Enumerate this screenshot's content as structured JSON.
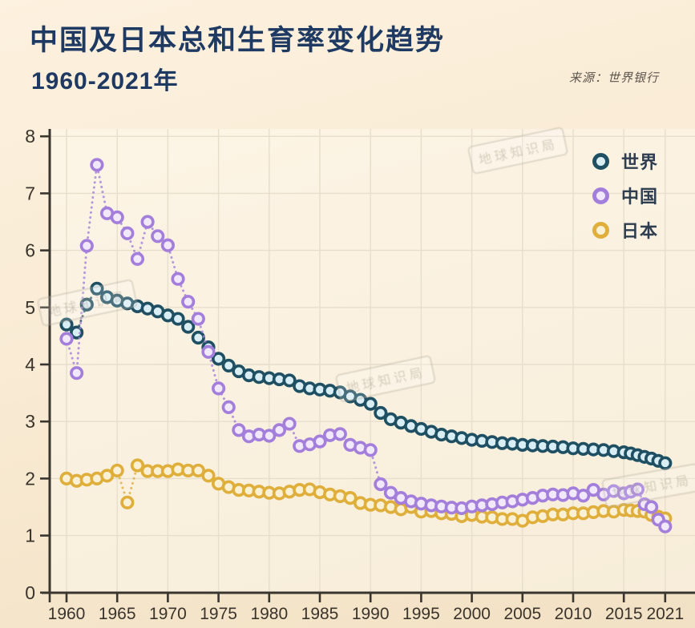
{
  "page": {
    "title": "中国及日本总和生育率变化趋势",
    "subtitle": "1960-2021年",
    "source": "来源：世界银行",
    "watermark": "地球知识局",
    "background": "#f9ebd4"
  },
  "colors": {
    "title_text": "#1e3a63",
    "axis": "#39352f",
    "grid": "#e7decb",
    "plot_background": "#faf2e4",
    "world_ring": "#1e4f62",
    "world_fill": "#d9edf5",
    "china_ring": "#a37edb",
    "china_fill": "#f1e9fb",
    "japan_ring": "#dfae3b",
    "japan_fill": "#faf1d4"
  },
  "chart_data": {
    "type": "scatter",
    "title": "中国及日本总和生育率变化趋势 1960-2021年",
    "source": "来源：世界银行",
    "xlabel": "",
    "ylabel": "",
    "ylim": [
      0,
      8
    ],
    "grid": true,
    "legend_position": "top-right",
    "marker": "open-circle-dotted-line",
    "yticks": [
      0,
      1,
      2,
      3,
      4,
      5,
      6,
      7,
      8
    ],
    "xticks": [
      1960,
      1965,
      1970,
      1975,
      1980,
      1985,
      1990,
      1995,
      2000,
      2005,
      2010,
      2015,
      2021
    ],
    "x": [
      1960,
      1961,
      1962,
      1963,
      1964,
      1965,
      1966,
      1967,
      1968,
      1969,
      1970,
      1971,
      1972,
      1973,
      1974,
      1975,
      1976,
      1977,
      1978,
      1979,
      1980,
      1981,
      1982,
      1983,
      1984,
      1985,
      1986,
      1987,
      1988,
      1989,
      1990,
      1991,
      1992,
      1993,
      1994,
      1995,
      1996,
      1997,
      1998,
      1999,
      2000,
      2001,
      2002,
      2003,
      2004,
      2005,
      2006,
      2007,
      2008,
      2009,
      2010,
      2011,
      2012,
      2013,
      2014,
      2015,
      2016,
      2017,
      2018,
      2019,
      2020,
      2021
    ],
    "series": [
      {
        "id": "world",
        "name": "世界",
        "ring": "#1e4f62",
        "fill": "#d9edf5",
        "values": [
          4.7,
          4.56,
          5.05,
          5.33,
          5.18,
          5.12,
          5.07,
          5.02,
          4.98,
          4.93,
          4.86,
          4.8,
          4.66,
          4.47,
          4.3,
          4.1,
          3.98,
          3.88,
          3.81,
          3.78,
          3.76,
          3.74,
          3.72,
          3.62,
          3.58,
          3.56,
          3.54,
          3.51,
          3.44,
          3.38,
          3.31,
          3.15,
          3.04,
          2.98,
          2.92,
          2.87,
          2.82,
          2.77,
          2.74,
          2.71,
          2.68,
          2.66,
          2.64,
          2.62,
          2.61,
          2.59,
          2.58,
          2.57,
          2.56,
          2.55,
          2.53,
          2.52,
          2.51,
          2.5,
          2.48,
          2.46,
          2.44,
          2.41,
          2.38,
          2.35,
          2.31,
          2.27
        ]
      },
      {
        "id": "china",
        "name": "中国",
        "ring": "#a37edb",
        "fill": "#f1e9fb",
        "values": [
          4.45,
          3.85,
          6.08,
          7.5,
          6.65,
          6.58,
          6.3,
          5.85,
          6.5,
          6.25,
          6.09,
          5.5,
          5.1,
          4.8,
          4.22,
          3.58,
          3.25,
          2.85,
          2.74,
          2.77,
          2.75,
          2.85,
          2.96,
          2.57,
          2.6,
          2.65,
          2.76,
          2.78,
          2.59,
          2.54,
          2.5,
          1.9,
          1.75,
          1.66,
          1.6,
          1.56,
          1.53,
          1.51,
          1.49,
          1.48,
          1.51,
          1.53,
          1.55,
          1.58,
          1.6,
          1.63,
          1.66,
          1.7,
          1.72,
          1.71,
          1.74,
          1.7,
          1.8,
          1.72,
          1.78,
          1.74,
          1.77,
          1.81,
          1.55,
          1.5,
          1.28,
          1.16
        ]
      },
      {
        "id": "japan",
        "name": "日本",
        "ring": "#dfae3b",
        "fill": "#faf1d4",
        "values": [
          2.0,
          1.96,
          1.98,
          2.0,
          2.05,
          2.14,
          1.58,
          2.23,
          2.13,
          2.13,
          2.13,
          2.16,
          2.14,
          2.14,
          2.05,
          1.91,
          1.85,
          1.8,
          1.79,
          1.77,
          1.75,
          1.74,
          1.77,
          1.8,
          1.81,
          1.76,
          1.72,
          1.69,
          1.66,
          1.57,
          1.54,
          1.53,
          1.5,
          1.46,
          1.5,
          1.42,
          1.43,
          1.39,
          1.38,
          1.34,
          1.36,
          1.33,
          1.32,
          1.29,
          1.29,
          1.26,
          1.32,
          1.34,
          1.37,
          1.37,
          1.39,
          1.39,
          1.41,
          1.43,
          1.42,
          1.45,
          1.44,
          1.43,
          1.42,
          1.36,
          1.33,
          1.3
        ]
      }
    ]
  },
  "legend": {
    "items": [
      {
        "label": "世界"
      },
      {
        "label": "中国"
      },
      {
        "label": "日本"
      }
    ]
  }
}
